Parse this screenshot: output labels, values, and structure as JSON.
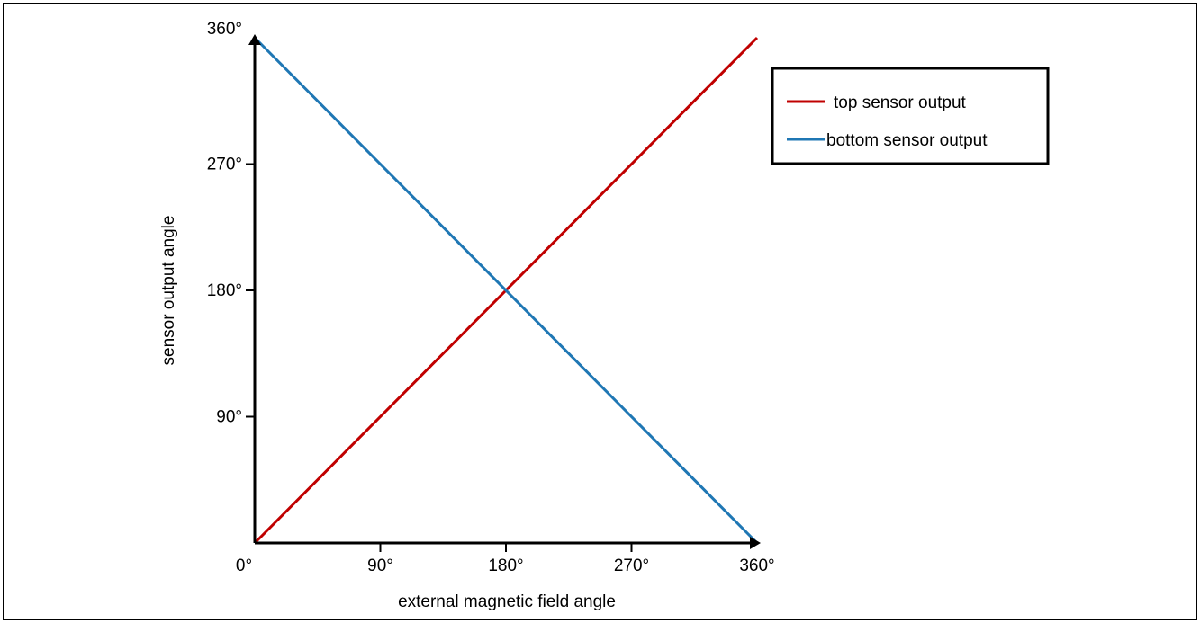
{
  "chart_data": {
    "type": "line",
    "xlabel": "external magnetic field angle",
    "ylabel": "sensor output angle",
    "xlim": [
      0,
      360
    ],
    "ylim": [
      0,
      360
    ],
    "x_ticks": [
      "0°",
      "90°",
      "180°",
      "270°",
      "360°"
    ],
    "y_ticks": [
      "90°",
      "180°",
      "270°",
      "360°"
    ],
    "x_tick_values": [
      0,
      90,
      180,
      270,
      360
    ],
    "y_tick_values": [
      90,
      180,
      270,
      360
    ],
    "grid": false,
    "legend_position": "top-right",
    "series": [
      {
        "name": "top sensor output",
        "color": "#c00000",
        "x": [
          0,
          360
        ],
        "y": [
          0,
          360
        ]
      },
      {
        "name": "bottom sensor output",
        "color": "#1f77b4",
        "x": [
          0,
          360
        ],
        "y": [
          360,
          0
        ]
      }
    ]
  }
}
